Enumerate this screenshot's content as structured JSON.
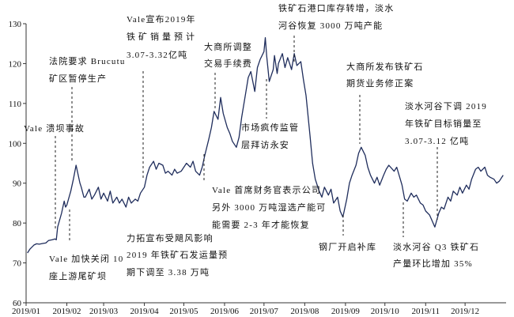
{
  "chart_data": {
    "type": "line",
    "title": "",
    "xlabel": "",
    "ylabel": "",
    "x_axis_type": "date",
    "xlim": [
      "2019-01-01",
      "2019-12-31"
    ],
    "ylim": [
      60,
      130
    ],
    "grid": false,
    "legend": "none",
    "y_ticks": [
      60,
      70,
      80,
      90,
      100,
      110,
      120,
      130
    ],
    "x_tick_labels": [
      "2019/01",
      "2019/02",
      "2019/03",
      "2019/04",
      "2019/05",
      "2019/06",
      "2019/07",
      "2019/08",
      "2019/09",
      "2019/10",
      "2019/11",
      "2019/12"
    ],
    "colors": {
      "series_line": "#1f2d5c"
    },
    "x": [
      "2019-01-02",
      "2019-01-04",
      "2019-01-07",
      "2019-01-09",
      "2019-01-11",
      "2019-01-14",
      "2019-01-16",
      "2019-01-18",
      "2019-01-21",
      "2019-01-23",
      "2019-01-24",
      "2019-01-25",
      "2019-01-28",
      "2019-01-29",
      "2019-01-30",
      "2019-01-31",
      "2019-02-01",
      "2019-02-04",
      "2019-02-06",
      "2019-02-08",
      "2019-02-11",
      "2019-02-12",
      "2019-02-14",
      "2019-02-15",
      "2019-02-18",
      "2019-02-20",
      "2019-02-22",
      "2019-02-25",
      "2019-02-27",
      "2019-03-01",
      "2019-03-04",
      "2019-03-06",
      "2019-03-08",
      "2019-03-11",
      "2019-03-13",
      "2019-03-15",
      "2019-03-18",
      "2019-03-20",
      "2019-03-22",
      "2019-03-25",
      "2019-03-27",
      "2019-03-29",
      "2019-04-01",
      "2019-04-03",
      "2019-04-05",
      "2019-04-08",
      "2019-04-10",
      "2019-04-12",
      "2019-04-15",
      "2019-04-17",
      "2019-04-19",
      "2019-04-22",
      "2019-04-24",
      "2019-04-26",
      "2019-04-29",
      "2019-05-01",
      "2019-05-03",
      "2019-05-06",
      "2019-05-08",
      "2019-05-10",
      "2019-05-13",
      "2019-05-15",
      "2019-05-17",
      "2019-05-20",
      "2019-05-22",
      "2019-05-24",
      "2019-05-27",
      "2019-05-29",
      "2019-05-31",
      "2019-06-03",
      "2019-06-05",
      "2019-06-07",
      "2019-06-10",
      "2019-06-12",
      "2019-06-14",
      "2019-06-17",
      "2019-06-19",
      "2019-06-21",
      "2019-06-24",
      "2019-06-26",
      "2019-06-28",
      "2019-07-01",
      "2019-07-02",
      "2019-07-03",
      "2019-07-05",
      "2019-07-08",
      "2019-07-09",
      "2019-07-11",
      "2019-07-12",
      "2019-07-15",
      "2019-07-17",
      "2019-07-19",
      "2019-07-22",
      "2019-07-24",
      "2019-07-26",
      "2019-07-29",
      "2019-07-31",
      "2019-08-02",
      "2019-08-05",
      "2019-08-07",
      "2019-08-09",
      "2019-08-12",
      "2019-08-14",
      "2019-08-16",
      "2019-08-19",
      "2019-08-21",
      "2019-08-23",
      "2019-08-26",
      "2019-08-28",
      "2019-08-30",
      "2019-09-02",
      "2019-09-04",
      "2019-09-06",
      "2019-09-09",
      "2019-09-11",
      "2019-09-13",
      "2019-09-16",
      "2019-09-18",
      "2019-09-20",
      "2019-09-23",
      "2019-09-25",
      "2019-09-27",
      "2019-09-30",
      "2019-10-02",
      "2019-10-04",
      "2019-10-08",
      "2019-10-10",
      "2019-10-14",
      "2019-10-16",
      "2019-10-18",
      "2019-10-21",
      "2019-10-23",
      "2019-10-25",
      "2019-10-28",
      "2019-10-30",
      "2019-11-01",
      "2019-11-04",
      "2019-11-06",
      "2019-11-08",
      "2019-11-11",
      "2019-11-13",
      "2019-11-15",
      "2019-11-18",
      "2019-11-20",
      "2019-11-22",
      "2019-11-25",
      "2019-11-27",
      "2019-11-29",
      "2019-12-02",
      "2019-12-04",
      "2019-12-06",
      "2019-12-09",
      "2019-12-11",
      "2019-12-13",
      "2019-12-16",
      "2019-12-18",
      "2019-12-20",
      "2019-12-23",
      "2019-12-25",
      "2019-12-27",
      "2019-12-30"
    ],
    "series": [
      {
        "values": [
          72.5,
          73.5,
          74.5,
          74.8,
          74.7,
          74.9,
          75.0,
          75.6,
          75.8,
          76.0,
          75.8,
          79.0,
          82.5,
          84.0,
          85.5,
          84.0,
          84.5,
          88.0,
          91.0,
          94.5,
          90.0,
          89.0,
          86.5,
          86.5,
          88.5,
          86.0,
          87.0,
          89.0,
          86.0,
          87.5,
          85.5,
          88.0,
          85.0,
          86.5,
          85.0,
          86.0,
          84.0,
          86.5,
          85.0,
          86.0,
          85.5,
          87.5,
          89.0,
          92.0,
          94.0,
          95.5,
          93.5,
          95.0,
          94.5,
          92.5,
          93.0,
          92.0,
          93.5,
          92.5,
          93.0,
          94.0,
          95.0,
          94.0,
          95.5,
          93.0,
          92.0,
          94.0,
          97.0,
          101.0,
          104.0,
          108.0,
          106.0,
          111.5,
          107.5,
          104.0,
          102.5,
          100.5,
          99.0,
          101.5,
          106.5,
          112.5,
          116.5,
          118.0,
          113.0,
          119.0,
          121.0,
          123.0,
          126.5,
          122.0,
          115.5,
          118.5,
          122.0,
          117.5,
          120.0,
          122.5,
          119.0,
          121.5,
          118.5,
          122.5,
          119.5,
          120.5,
          116.0,
          112.0,
          102.0,
          95.0,
          91.0,
          88.0,
          86.5,
          89.0,
          87.0,
          88.5,
          85.0,
          86.5,
          83.0,
          81.5,
          86.0,
          90.0,
          92.0,
          94.5,
          97.5,
          99.0,
          97.0,
          94.0,
          92.0,
          90.0,
          91.5,
          89.5,
          92.0,
          93.5,
          94.5,
          93.0,
          94.0,
          89.5,
          86.0,
          85.5,
          87.5,
          86.5,
          87.0,
          85.0,
          84.5,
          83.0,
          82.0,
          80.5,
          79.0,
          82.5,
          84.0,
          83.5,
          86.5,
          85.5,
          88.0,
          87.0,
          89.0,
          87.5,
          89.5,
          88.5,
          91.0,
          93.5,
          94.0,
          93.0,
          94.0,
          92.0,
          91.5,
          91.0,
          90.0,
          90.5,
          92.0
        ]
      }
    ],
    "annotations": [
      {
        "lines": [
          "Vale 溃坝事故"
        ]
      },
      {
        "lines": [
          "法院要求 Brucutu",
          "矿区暂停生产"
        ]
      },
      {
        "lines": [
          "Vale 加快关闭 10",
          "座上游尾矿坝"
        ]
      },
      {
        "lines": [
          "Vale宣布2019年",
          "铁矿销量预计",
          "3.07-3.32亿吨"
        ]
      },
      {
        "lines": [
          "力拓宣布受飓风影响",
          "2019 年铁矿石发运量预",
          "期下调至 3.38 万吨"
        ]
      },
      {
        "lines": [
          "大商所调整",
          "交易手续费"
        ]
      },
      {
        "lines": [
          "Vale 首席财务官表示公司",
          "另外 3000 万吨湿选产能可",
          "能需要 2-3 年才能恢复"
        ]
      },
      {
        "lines": [
          "市场疯传监管",
          "层拜访永安"
        ]
      },
      {
        "lines": [
          "铁矿石港口库存转增，淡水",
          "河谷恢复 3000 万吨产能"
        ]
      },
      {
        "lines": [
          "大商所发布铁矿石",
          "期货业务修正案"
        ]
      },
      {
        "lines": [
          "钢厂开启补库"
        ]
      },
      {
        "lines": [
          "淡水河谷下调 2019",
          "年铁矿目标销量至",
          "3.07-3.12 亿吨"
        ]
      },
      {
        "lines": [
          "淡水河谷 Q3 铁矿石",
          "产量环比增加 35%"
        ]
      }
    ]
  }
}
